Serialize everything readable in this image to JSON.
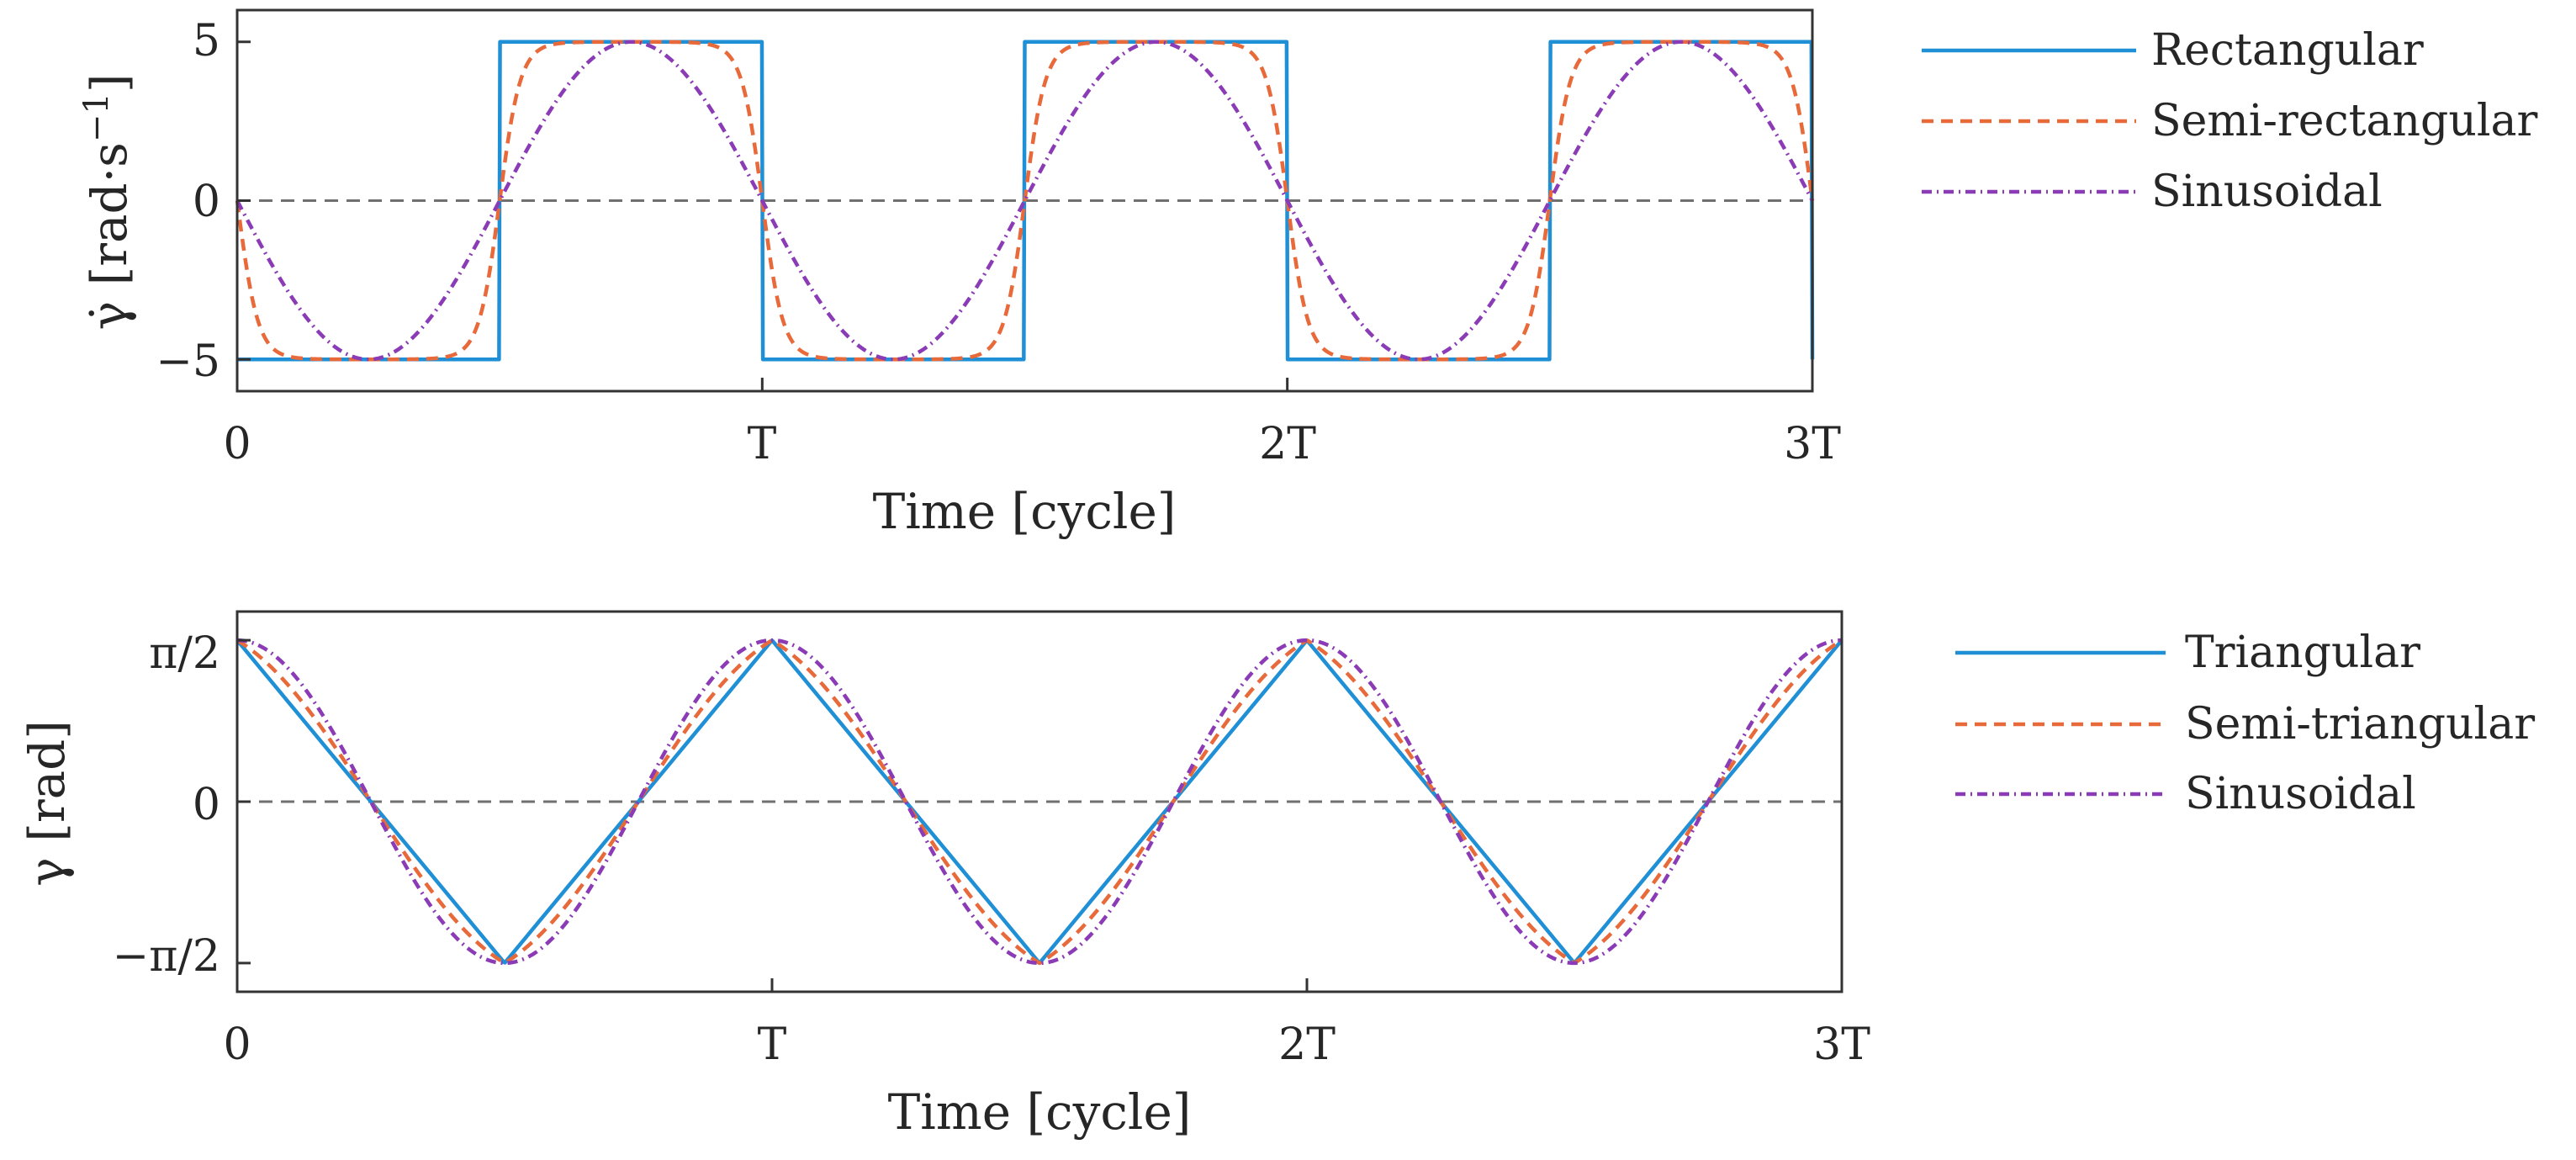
{
  "colors": {
    "blue": "#1f8fd6",
    "orange": "#e8693a",
    "purple": "#8a3bb5",
    "axis": "#333333",
    "zero": "#707070"
  },
  "chart_data": [
    {
      "type": "line",
      "xlabel": "Time [cycle]",
      "ylabel": "γ̇ [rad·s⁻¹]",
      "ylabel_main": "γ̇ [rad·s",
      "ylabel_exp": "−1",
      "ylabel_close": "]",
      "x_unit": "cycle",
      "xlim": [
        0,
        3
      ],
      "ylim": [
        -6,
        6
      ],
      "x_ticks": [
        0,
        1,
        2,
        3
      ],
      "x_tick_labels": [
        "0",
        "T",
        "2T",
        "3T"
      ],
      "y_ticks": [
        -5,
        0,
        5
      ],
      "y_tick_labels": [
        "−5",
        "0",
        "5"
      ],
      "zero_line": true,
      "amplitude": 5,
      "series": [
        {
          "name": "Rectangular",
          "shape": "square",
          "style": "solid",
          "color_key": "blue"
        },
        {
          "name": "Semi-rectangular",
          "shape": "semi-square",
          "style": "dashed",
          "color_key": "orange"
        },
        {
          "name": "Sinusoidal",
          "shape": "sine",
          "style": "dashdot",
          "color_key": "purple"
        }
      ],
      "legend_position": "right, outside"
    },
    {
      "type": "line",
      "xlabel": "Time [cycle]",
      "ylabel": "γ [rad]",
      "x_unit": "cycle",
      "xlim": [
        0,
        3
      ],
      "ylim": [
        -1.85,
        1.85
      ],
      "x_ticks": [
        0,
        1,
        2,
        3
      ],
      "x_tick_labels": [
        "0",
        "T",
        "2T",
        "3T"
      ],
      "y_ticks": [
        -1.5708,
        0,
        1.5708
      ],
      "y_tick_labels": [
        "−π/2",
        "0",
        "π/2"
      ],
      "zero_line": true,
      "amplitude": 1.5708,
      "series": [
        {
          "name": "Triangular",
          "shape": "triangle",
          "style": "solid",
          "color_key": "blue"
        },
        {
          "name": "Semi-triangular",
          "shape": "semi-triangle",
          "style": "dashed",
          "color_key": "orange"
        },
        {
          "name": "Sinusoidal",
          "shape": "cosine",
          "style": "dashdot",
          "color_key": "purple"
        }
      ],
      "legend_position": "right, outside"
    }
  ]
}
